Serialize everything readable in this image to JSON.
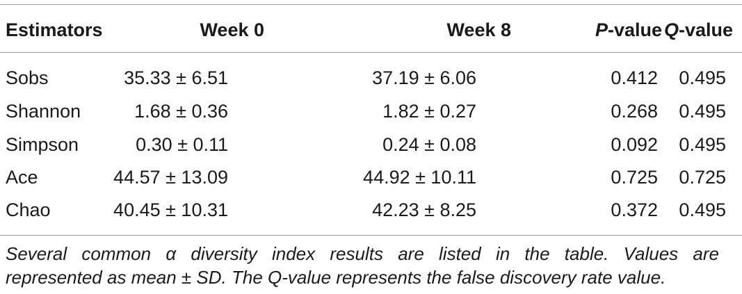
{
  "table": {
    "headers": {
      "estimators": "Estimators",
      "week0": "Week 0",
      "week8": "Week 8",
      "p_prefix": "P",
      "p_suffix": "-value",
      "q_prefix": "Q",
      "q_suffix": "-value"
    },
    "rows": [
      {
        "estimator": "Sobs",
        "week0": "35.33 ± 6.51",
        "week8": "37.19 ± 6.06",
        "p": "0.412",
        "q": "0.495"
      },
      {
        "estimator": "Shannon",
        "week0": "1.68 ± 0.36",
        "week8": "1.82 ± 0.27",
        "p": "0.268",
        "q": "0.495"
      },
      {
        "estimator": "Simpson",
        "week0": "0.30 ± 0.11",
        "week8": "0.24 ± 0.08",
        "p": "0.092",
        "q": "0.495"
      },
      {
        "estimator": "Ace",
        "week0": "44.57 ± 13.09",
        "week8": "44.92 ± 10.11",
        "p": "0.725",
        "q": "0.725"
      },
      {
        "estimator": "Chao",
        "week0": "40.45 ± 10.31",
        "week8": "42.23 ± 8.25",
        "p": "0.372",
        "q": "0.495"
      }
    ]
  },
  "caption": {
    "line1": "Several common α diversity index results are listed in the table. Values are",
    "line2": "represented as mean ± SD. The Q-value represents the false discovery rate value."
  }
}
